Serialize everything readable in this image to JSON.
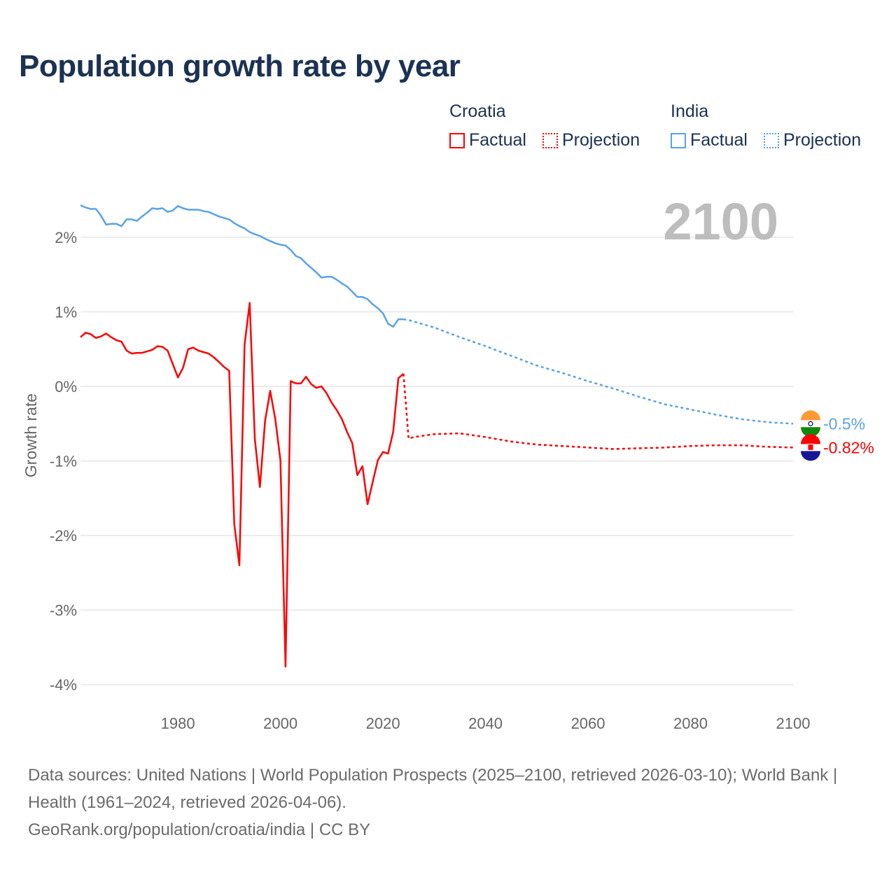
{
  "title": "Population growth rate by year",
  "legend": {
    "groups": [
      {
        "name": "Croatia",
        "factual_label": "Factual",
        "projection_label": "Projection",
        "color": "#ff0000"
      },
      {
        "name": "India",
        "factual_label": "Factual",
        "projection_label": "Projection",
        "color": "#5aa2e8"
      }
    ]
  },
  "footer": {
    "sources": "Data sources: United Nations | World Population Prospects (2025–2100, retrieved 2026-03-10); World Bank | Health (1961–2024, retrieved 2026-04-06).",
    "credit": "GeoRank.org/population/croatia/india | CC BY"
  },
  "chart_data": {
    "type": "line",
    "title": "Population growth rate by year",
    "xlabel": "",
    "ylabel": "Growth rate",
    "xlim": [
      1961,
      2100
    ],
    "ylim": [
      -4.3,
      2.6
    ],
    "grid": true,
    "year_label": "2100",
    "x_ticks": [
      1980,
      2000,
      2020,
      2040,
      2060,
      2080,
      2100
    ],
    "y_ticks": [
      2,
      1,
      0,
      -1,
      -2,
      -3,
      -4
    ],
    "y_tick_labels": [
      "2%",
      "1%",
      "0%",
      "-1%",
      "-2%",
      "-3%",
      "-4%"
    ],
    "legend_position": "top-right",
    "series": [
      {
        "name": "India",
        "color": "#5aa2e8",
        "end_label": "-0.5%",
        "factual": {
          "x": [
            1961,
            1962,
            1963,
            1964,
            1965,
            1966,
            1967,
            1968,
            1969,
            1970,
            1971,
            1972,
            1973,
            1974,
            1975,
            1976,
            1977,
            1978,
            1979,
            1980,
            1981,
            1982,
            1983,
            1984,
            1985,
            1986,
            1987,
            1988,
            1989,
            1990,
            1991,
            1992,
            1993,
            1994,
            1995,
            1996,
            1997,
            1998,
            1999,
            2000,
            2001,
            2002,
            2003,
            2004,
            2005,
            2006,
            2007,
            2008,
            2009,
            2010,
            2011,
            2012,
            2013,
            2014,
            2015,
            2016,
            2017,
            2018,
            2019,
            2020,
            2021,
            2022,
            2023,
            2024
          ],
          "y": [
            2.43,
            2.4,
            2.38,
            2.38,
            2.29,
            2.17,
            2.18,
            2.18,
            2.15,
            2.24,
            2.24,
            2.22,
            2.28,
            2.33,
            2.39,
            2.38,
            2.39,
            2.34,
            2.36,
            2.42,
            2.39,
            2.37,
            2.37,
            2.37,
            2.35,
            2.34,
            2.31,
            2.28,
            2.26,
            2.24,
            2.19,
            2.15,
            2.12,
            2.07,
            2.04,
            2.02,
            1.98,
            1.95,
            1.92,
            1.9,
            1.89,
            1.83,
            1.75,
            1.72,
            1.65,
            1.59,
            1.53,
            1.46,
            1.47,
            1.47,
            1.43,
            1.38,
            1.34,
            1.27,
            1.2,
            1.2,
            1.17,
            1.1,
            1.05,
            0.98,
            0.84,
            0.8,
            0.9,
            0.9
          ]
        },
        "projection": {
          "x": [
            2024,
            2025,
            2030,
            2035,
            2040,
            2045,
            2050,
            2055,
            2060,
            2065,
            2070,
            2075,
            2080,
            2085,
            2090,
            2095,
            2100
          ],
          "y": [
            0.9,
            0.89,
            0.79,
            0.66,
            0.54,
            0.41,
            0.28,
            0.18,
            0.07,
            -0.03,
            -0.14,
            -0.24,
            -0.31,
            -0.38,
            -0.44,
            -0.48,
            -0.5
          ]
        }
      },
      {
        "name": "Croatia",
        "color": "#ff0000",
        "end_label": "-0.82%",
        "factual": {
          "x": [
            1961,
            1962,
            1963,
            1964,
            1965,
            1966,
            1967,
            1968,
            1969,
            1970,
            1971,
            1972,
            1973,
            1974,
            1975,
            1976,
            1977,
            1978,
            1979,
            1980,
            1981,
            1982,
            1983,
            1984,
            1985,
            1986,
            1987,
            1988,
            1989,
            1990,
            1991,
            1992,
            1993,
            1994,
            1995,
            1996,
            1997,
            1998,
            1999,
            2000,
            2001,
            2002,
            2003,
            2004,
            2005,
            2006,
            2007,
            2008,
            2009,
            2010,
            2011,
            2012,
            2013,
            2014,
            2015,
            2016,
            2017,
            2018,
            2019,
            2020,
            2021,
            2022,
            2023,
            2024
          ],
          "y": [
            0.66,
            0.72,
            0.7,
            0.65,
            0.67,
            0.71,
            0.66,
            0.62,
            0.6,
            0.48,
            0.44,
            0.45,
            0.45,
            0.47,
            0.49,
            0.54,
            0.53,
            0.48,
            0.3,
            0.12,
            0.25,
            0.5,
            0.52,
            0.48,
            0.46,
            0.44,
            0.39,
            0.33,
            0.26,
            0.21,
            -1.85,
            -2.4,
            0.56,
            1.12,
            -0.7,
            -1.35,
            -0.46,
            -0.06,
            -0.44,
            -0.99,
            -3.76,
            0.07,
            0.04,
            0.04,
            0.13,
            0.03,
            -0.02,
            0.0,
            -0.09,
            -0.22,
            -0.32,
            -0.44,
            -0.61,
            -0.76,
            -1.19,
            -1.07,
            -1.58,
            -1.28,
            -0.99,
            -0.88,
            -0.9,
            -0.61,
            0.11,
            0.17
          ]
        },
        "projection": {
          "x": [
            2024,
            2025,
            2026,
            2030,
            2035,
            2040,
            2045,
            2050,
            2055,
            2060,
            2065,
            2070,
            2075,
            2080,
            2085,
            2090,
            2095,
            2100
          ],
          "y": [
            0.17,
            -0.7,
            -0.68,
            -0.64,
            -0.63,
            -0.68,
            -0.74,
            -0.78,
            -0.8,
            -0.82,
            -0.84,
            -0.83,
            -0.82,
            -0.8,
            -0.79,
            -0.79,
            -0.81,
            -0.82
          ]
        }
      }
    ]
  }
}
